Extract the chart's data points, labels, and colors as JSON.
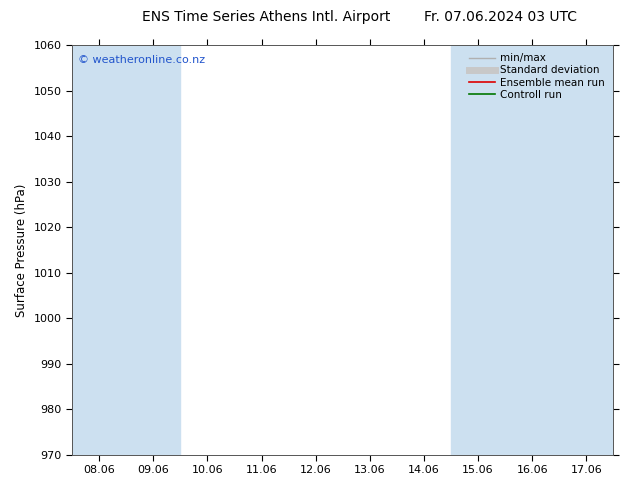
{
  "title_left": "ENS Time Series Athens Intl. Airport",
  "title_right": "Fr. 07.06.2024 03 UTC",
  "ylabel": "Surface Pressure (hPa)",
  "ylim": [
    970,
    1060
  ],
  "yticks": [
    970,
    980,
    990,
    1000,
    1010,
    1020,
    1030,
    1040,
    1050,
    1060
  ],
  "x_labels": [
    "08.06",
    "09.06",
    "10.06",
    "11.06",
    "12.06",
    "13.06",
    "14.06",
    "15.06",
    "16.06",
    "17.06"
  ],
  "x_positions": [
    0,
    1,
    2,
    3,
    4,
    5,
    6,
    7,
    8,
    9
  ],
  "xlim": [
    -0.5,
    9.5
  ],
  "shaded_bands": [
    {
      "x_start": -0.5,
      "x_end": 0.5
    },
    {
      "x_start": 0.5,
      "x_end": 1.5
    },
    {
      "x_start": 6.5,
      "x_end": 7.5
    },
    {
      "x_start": 7.5,
      "x_end": 8.5
    },
    {
      "x_start": 8.5,
      "x_end": 9.5
    }
  ],
  "band_color": "#cce0f0",
  "background_color": "#ffffff",
  "plot_bg_color": "#ffffff",
  "legend_entries": [
    {
      "label": "min/max",
      "color": "#b0b0b0",
      "lw": 1.0
    },
    {
      "label": "Standard deviation",
      "color": "#c8c8c8",
      "lw": 5
    },
    {
      "label": "Ensemble mean run",
      "color": "#dd0000",
      "lw": 1.2
    },
    {
      "label": "Controll run",
      "color": "#007700",
      "lw": 1.2
    }
  ],
  "copyright_text": "© weatheronline.co.nz",
  "copyright_color": "#2255cc",
  "title_fontsize": 10,
  "axis_label_fontsize": 8.5,
  "tick_fontsize": 8,
  "legend_fontsize": 7.5
}
